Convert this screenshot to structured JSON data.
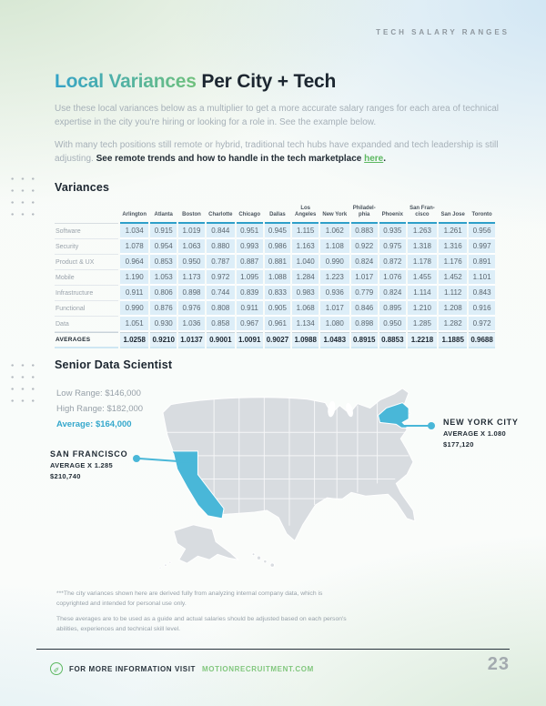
{
  "header": {
    "label": "TECH SALARY RANGES",
    "page_number": "23"
  },
  "title": {
    "accent": "Local Variances",
    "rest": " Per City + Tech"
  },
  "intro": {
    "p1": "Use these local variances below as a multiplier to get a more accurate salary ranges for each area of technical expertise in the city you're hiring or looking for a role in. See the example below.",
    "p2_normal": "With many tech positions still remote or hybrid, traditional tech hubs have expanded and tech leadership is still adjusting. ",
    "p2_bold": "See remote trends and how to handle in the tech marketplace ",
    "p2_link": "here",
    "p2_period": "."
  },
  "variances": {
    "heading": "Variances",
    "columns": [
      "Arlington",
      "Atlanta",
      "Boston",
      "Charlotte",
      "Chicago",
      "Dallas",
      "Los\nAngeles",
      "New York",
      "Philadel-\nphia",
      "Phoenix",
      "San Fran-\ncisco",
      "San Jose",
      "Toronto"
    ],
    "rows": [
      {
        "label": "Software",
        "values": [
          "1.034",
          "0.915",
          "1.019",
          "0.844",
          "0.951",
          "0.945",
          "1.115",
          "1.062",
          "0.883",
          "0.935",
          "1.263",
          "1.261",
          "0.956"
        ]
      },
      {
        "label": "Security",
        "values": [
          "1.078",
          "0.954",
          "1.063",
          "0.880",
          "0.993",
          "0.986",
          "1.163",
          "1.108",
          "0.922",
          "0.975",
          "1.318",
          "1.316",
          "0.997"
        ]
      },
      {
        "label": "Product & UX",
        "values": [
          "0.964",
          "0.853",
          "0.950",
          "0.787",
          "0.887",
          "0.881",
          "1.040",
          "0.990",
          "0.824",
          "0.872",
          "1.178",
          "1.176",
          "0.891"
        ]
      },
      {
        "label": "Mobile",
        "values": [
          "1.190",
          "1.053",
          "1.173",
          "0.972",
          "1.095",
          "1.088",
          "1.284",
          "1.223",
          "1.017",
          "1.076",
          "1.455",
          "1.452",
          "1.101"
        ]
      },
      {
        "label": "Infrastructure",
        "values": [
          "0.911",
          "0.806",
          "0.898",
          "0.744",
          "0.839",
          "0.833",
          "0.983",
          "0.936",
          "0.779",
          "0.824",
          "1.114",
          "1.112",
          "0.843"
        ]
      },
      {
        "label": "Functional",
        "values": [
          "0.990",
          "0.876",
          "0.976",
          "0.808",
          "0.911",
          "0.905",
          "1.068",
          "1.017",
          "0.846",
          "0.895",
          "1.210",
          "1.208",
          "0.916"
        ]
      },
      {
        "label": "Data",
        "values": [
          "1.051",
          "0.930",
          "1.036",
          "0.858",
          "0.967",
          "0.961",
          "1.134",
          "1.080",
          "0.898",
          "0.950",
          "1.285",
          "1.282",
          "0.972"
        ]
      }
    ],
    "averages": {
      "label": "AVERAGES",
      "values": [
        "1.0258",
        "0.9210",
        "1.0137",
        "0.9001",
        "1.0091",
        "0.9027",
        "1.0988",
        "1.0483",
        "0.8915",
        "0.8853",
        "1.2218",
        "1.1885",
        "0.9688"
      ]
    }
  },
  "example": {
    "heading": "Senior Data Scientist",
    "low": "Low Range: $146,000",
    "high": "High Range: $182,000",
    "average": "Average: $164,000",
    "callouts": {
      "san_francisco": {
        "city": "SAN FRANCISCO",
        "multiplier": "AVERAGE X 1.285",
        "salary": "$210,740"
      },
      "new_york": {
        "city": "NEW YORK CITY",
        "multiplier": "AVERAGE X 1.080",
        "salary": "$177,120"
      }
    }
  },
  "footnotes": {
    "p1": "***The city variances shown here are derived fully from analyzing internal company data, which is copyrighted and intended for personal use only.",
    "p2": "These averages are to be used as a guide and actual salaries should be adjusted based on each person's abilities, experiences and technical skill level."
  },
  "footer": {
    "text": "FOR MORE INFORMATION VISIT",
    "link": "MOTIONRECRUITMENT.COM"
  },
  "colors": {
    "accent_blue": "#49b7d8",
    "accent_green": "#5cb860",
    "table_header_line": "#2e9fc9",
    "cell_bg": "#ddeef8",
    "title_gradient_start": "#35a3c8",
    "title_gradient_end": "#70c17c",
    "state_gray": "#d8dce0",
    "dark_text": "#1c2630"
  }
}
